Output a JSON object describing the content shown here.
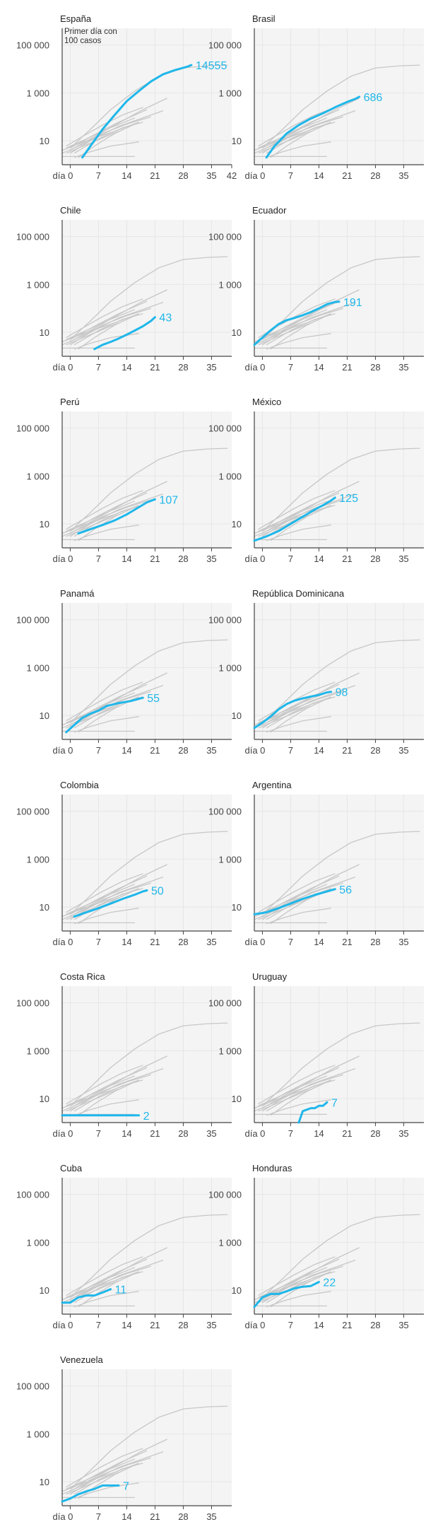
{
  "colors": {
    "highlight": "#1fb7ea",
    "context": "#c7c7c7",
    "panel_bg": "#f4f4f4",
    "axis": "#444444"
  },
  "chart_data": {
    "type": "line",
    "scale": "log",
    "annotation": "Primer día con 100 casos",
    "y_ticks": [
      {
        "value": 10,
        "label": "10"
      },
      {
        "value": 1000,
        "label": "1 000"
      },
      {
        "value": 100000,
        "label": "100 000"
      }
    ],
    "x_ticks": [
      {
        "value": 0,
        "label": "día 0"
      },
      {
        "value": 7,
        "label": "7"
      },
      {
        "value": 14,
        "label": "14"
      },
      {
        "value": 21,
        "label": "21"
      },
      {
        "value": 28,
        "label": "28"
      },
      {
        "value": 35,
        "label": "35"
      }
    ],
    "x_tick_extra": {
      "value": 42,
      "label": "42"
    },
    "xlim": [
      -2,
      40
    ],
    "ylim": [
      1,
      500000
    ],
    "context_lines": [
      [
        [
          -2,
          3
        ],
        [
          3,
          7
        ],
        [
          8,
          20
        ],
        [
          14,
          50
        ],
        [
          20,
          100
        ]
      ],
      [
        [
          -1,
          5
        ],
        [
          4,
          12
        ],
        [
          10,
          35
        ],
        [
          16,
          90
        ]
      ],
      [
        [
          0,
          3
        ],
        [
          5,
          10
        ],
        [
          12,
          40
        ],
        [
          18,
          90
        ],
        [
          23,
          180
        ]
      ],
      [
        [
          -1,
          6
        ],
        [
          3,
          15
        ],
        [
          8,
          45
        ],
        [
          13,
          120
        ],
        [
          18,
          250
        ]
      ],
      [
        [
          0,
          5
        ],
        [
          6,
          18
        ],
        [
          12,
          60
        ],
        [
          19,
          200
        ]
      ],
      [
        [
          -2,
          4
        ],
        [
          4,
          10
        ],
        [
          11,
          25
        ],
        [
          17,
          60
        ]
      ],
      [
        [
          2,
          2
        ],
        [
          6,
          6
        ],
        [
          11,
          20
        ],
        [
          17,
          60
        ]
      ],
      [
        [
          1,
          3
        ],
        [
          7,
          12
        ],
        [
          13,
          35
        ],
        [
          18,
          60
        ]
      ],
      [
        [
          -1,
          3
        ],
        [
          5,
          8
        ],
        [
          12,
          25
        ]
      ],
      [
        [
          1,
          2
        ],
        [
          5,
          3.5
        ],
        [
          10,
          6
        ],
        [
          17,
          9
        ]
      ],
      [
        [
          0,
          4
        ],
        [
          6,
          15
        ],
        [
          12,
          55
        ],
        [
          18,
          200
        ],
        [
          24,
          600
        ]
      ],
      [
        [
          0,
          5
        ],
        [
          5,
          30
        ],
        [
          10,
          200
        ],
        [
          16,
          1200
        ],
        [
          22,
          5000
        ],
        [
          28,
          11000
        ],
        [
          34,
          13500
        ],
        [
          39,
          14500
        ]
      ],
      [
        [
          -2,
          2.2
        ],
        [
          16,
          2.2
        ]
      ]
    ],
    "panels": [
      {
        "name": "España",
        "series": [
          [
            3,
            2
          ],
          [
            5,
            6
          ],
          [
            8,
            30
          ],
          [
            11,
            120
          ],
          [
            14,
            450
          ],
          [
            17,
            1200
          ],
          [
            20,
            3000
          ],
          [
            23,
            6000
          ],
          [
            26,
            9000
          ],
          [
            29,
            12500
          ],
          [
            30,
            14555
          ]
        ],
        "value": 14555,
        "label": "14555",
        "show_annotation": true,
        "show_x42": true
      },
      {
        "name": "Brasil",
        "series": [
          [
            1,
            2
          ],
          [
            3,
            6
          ],
          [
            6,
            20
          ],
          [
            9,
            45
          ],
          [
            12,
            85
          ],
          [
            15,
            140
          ],
          [
            18,
            250
          ],
          [
            21,
            420
          ],
          [
            23,
            560
          ],
          [
            24,
            686
          ]
        ],
        "value": 686,
        "label": "686",
        "show_annotation": false,
        "show_x42": false
      },
      {
        "name": "Chile",
        "series": [
          [
            6,
            2
          ],
          [
            8,
            3
          ],
          [
            10,
            4
          ],
          [
            12,
            5.5
          ],
          [
            14,
            8
          ],
          [
            16,
            12
          ],
          [
            18,
            18
          ],
          [
            20,
            30
          ],
          [
            21,
            43
          ]
        ],
        "value": 43,
        "label": "43",
        "show_annotation": false,
        "show_x42": false
      },
      {
        "name": "Ecuador",
        "series": [
          [
            -2,
            3
          ],
          [
            0,
            6
          ],
          [
            2,
            12
          ],
          [
            4,
            22
          ],
          [
            6,
            32
          ],
          [
            8,
            40
          ],
          [
            10,
            52
          ],
          [
            12,
            70
          ],
          [
            14,
            100
          ],
          [
            16,
            150
          ],
          [
            18,
            185
          ],
          [
            19,
            191
          ]
        ],
        "value": 191,
        "label": "191",
        "show_annotation": false,
        "show_x42": false
      },
      {
        "name": "Perú",
        "series": [
          [
            2,
            4
          ],
          [
            5,
            6
          ],
          [
            8,
            9
          ],
          [
            11,
            14
          ],
          [
            14,
            25
          ],
          [
            17,
            50
          ],
          [
            19,
            80
          ],
          [
            21,
            107
          ]
        ],
        "value": 107,
        "label": "107",
        "show_annotation": false,
        "show_x42": false
      },
      {
        "name": "México",
        "series": [
          [
            -2,
            2
          ],
          [
            1,
            3
          ],
          [
            4,
            5
          ],
          [
            7,
            10
          ],
          [
            10,
            20
          ],
          [
            13,
            40
          ],
          [
            15,
            60
          ],
          [
            17,
            95
          ],
          [
            18,
            125
          ]
        ],
        "value": 125,
        "label": "125",
        "show_annotation": false,
        "show_x42": false
      },
      {
        "name": "Panamá",
        "series": [
          [
            -1,
            2
          ],
          [
            1,
            4
          ],
          [
            3,
            8
          ],
          [
            5,
            12
          ],
          [
            7,
            16
          ],
          [
            9,
            25
          ],
          [
            12,
            33
          ],
          [
            15,
            40
          ],
          [
            17,
            50
          ],
          [
            18,
            55
          ]
        ],
        "value": 55,
        "label": "55",
        "show_annotation": false,
        "show_x42": false
      },
      {
        "name": "República Dominicana",
        "series": [
          [
            -2,
            3
          ],
          [
            0,
            5
          ],
          [
            2,
            9
          ],
          [
            4,
            18
          ],
          [
            6,
            30
          ],
          [
            8,
            42
          ],
          [
            10,
            52
          ],
          [
            12,
            62
          ],
          [
            14,
            72
          ],
          [
            16,
            92
          ],
          [
            17,
            98
          ]
        ],
        "value": 98,
        "label": "98",
        "show_annotation": false,
        "show_x42": false
      },
      {
        "name": "Colombia",
        "series": [
          [
            1,
            4
          ],
          [
            4,
            6
          ],
          [
            7,
            9
          ],
          [
            10,
            14
          ],
          [
            13,
            22
          ],
          [
            16,
            33
          ],
          [
            18,
            45
          ],
          [
            19,
            50
          ]
        ],
        "value": 50,
        "label": "50",
        "show_annotation": false,
        "show_x42": false
      },
      {
        "name": "Argentina",
        "series": [
          [
            -2,
            5
          ],
          [
            1,
            6
          ],
          [
            4,
            9
          ],
          [
            7,
            14
          ],
          [
            10,
            22
          ],
          [
            13,
            32
          ],
          [
            16,
            45
          ],
          [
            18,
            56
          ]
        ],
        "value": 56,
        "label": "56",
        "show_annotation": false,
        "show_x42": false
      },
      {
        "name": "Costa Rica",
        "series": [
          [
            -2,
            2
          ],
          [
            17,
            2
          ]
        ],
        "value": 2,
        "label": "2",
        "show_annotation": false,
        "show_x42": false
      },
      {
        "name": "Uruguay",
        "series": [
          [
            9,
            1
          ],
          [
            10,
            3
          ],
          [
            12,
            4
          ],
          [
            13,
            4
          ],
          [
            14,
            5
          ],
          [
            15,
            5
          ],
          [
            16,
            7
          ]
        ],
        "value": 7,
        "label": "7",
        "show_annotation": false,
        "show_x42": false
      },
      {
        "name": "Cuba",
        "series": [
          [
            -2,
            3
          ],
          [
            0,
            3
          ],
          [
            2,
            5
          ],
          [
            4,
            6
          ],
          [
            6,
            6
          ],
          [
            8,
            8
          ],
          [
            10,
            11
          ]
        ],
        "value": 11,
        "label": "11",
        "show_annotation": false,
        "show_x42": false
      },
      {
        "name": "Honduras",
        "series": [
          [
            -2,
            2
          ],
          [
            0,
            5
          ],
          [
            2,
            7
          ],
          [
            4,
            7
          ],
          [
            6,
            9
          ],
          [
            8,
            12
          ],
          [
            10,
            14
          ],
          [
            12,
            15
          ],
          [
            14,
            22
          ]
        ],
        "value": 22,
        "label": "22",
        "show_annotation": false,
        "show_x42": false
      },
      {
        "name": "Venezuela",
        "series": [
          [
            -2,
            1.5
          ],
          [
            0,
            2
          ],
          [
            2,
            3
          ],
          [
            4,
            4
          ],
          [
            6,
            5
          ],
          [
            8,
            7
          ],
          [
            10,
            7
          ],
          [
            12,
            7
          ]
        ],
        "value": 7,
        "label": "7",
        "show_annotation": false,
        "show_x42": false
      }
    ]
  }
}
